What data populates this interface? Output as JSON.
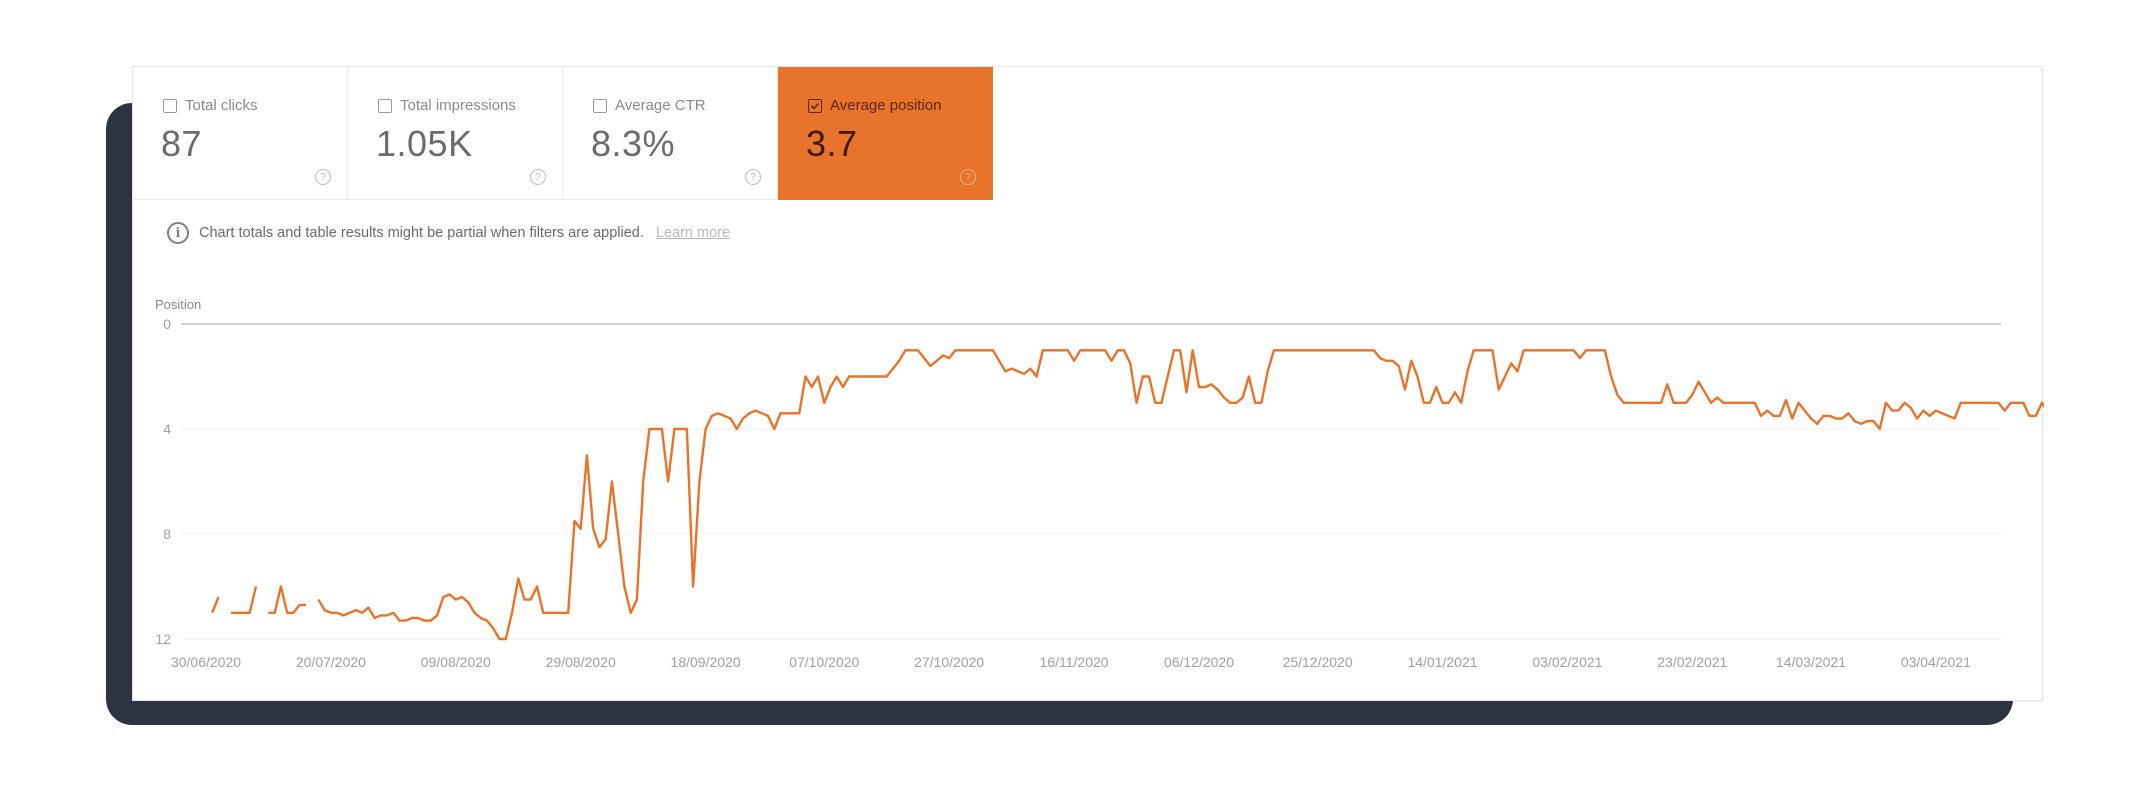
{
  "metrics": [
    {
      "label": "Total clicks",
      "value": "87",
      "checked": false
    },
    {
      "label": "Total impressions",
      "value": "1.05K",
      "checked": false
    },
    {
      "label": "Average CTR",
      "value": "8.3%",
      "checked": false
    },
    {
      "label": "Average position",
      "value": "3.7",
      "checked": true
    }
  ],
  "help_glyph": "?",
  "notice": {
    "icon": "info-icon",
    "text": "Chart totals and table results might be partial when filters are applied.",
    "link": "Learn more"
  },
  "colors": {
    "accent": "#e8732a",
    "line": "#e8732a",
    "frame": "#2d3441"
  },
  "chart_data": {
    "type": "line",
    "title": "Average position",
    "ylabel": "Position",
    "xlabel": "",
    "y_inverted": true,
    "ylim": [
      0,
      12
    ],
    "yticks": [
      0,
      4,
      8,
      12
    ],
    "grid": true,
    "legend": "none",
    "x_tick_labels": [
      "30/06/2020",
      "20/07/2020",
      "09/08/2020",
      "29/08/2020",
      "18/09/2020",
      "07/10/2020",
      "27/10/2020",
      "16/11/2020",
      "06/12/2020",
      "25/12/2020",
      "14/01/2021",
      "03/02/2021",
      "23/02/2021",
      "14/03/2021",
      "03/04/2021"
    ],
    "x_tick_day_index": [
      0,
      20,
      40,
      60,
      80,
      99,
      119,
      139,
      159,
      178,
      198,
      218,
      238,
      257,
      277
    ],
    "series": [
      {
        "name": "Average position",
        "points": [
          [
            1,
            11
          ],
          [
            2,
            10.4
          ],
          null,
          [
            4,
            11
          ],
          [
            6,
            11
          ],
          [
            7,
            11
          ],
          [
            8,
            10
          ],
          null,
          [
            10,
            11
          ],
          [
            11,
            11
          ],
          [
            12,
            10
          ],
          [
            13,
            11
          ],
          [
            14,
            11
          ],
          [
            15,
            10.7
          ],
          [
            16,
            10.7
          ],
          null,
          [
            18,
            10.5
          ],
          [
            19,
            10.9
          ],
          [
            20,
            11
          ],
          [
            21,
            11
          ],
          [
            22,
            11.1
          ],
          [
            23,
            11
          ],
          [
            24,
            10.9
          ],
          [
            25,
            11
          ],
          [
            26,
            10.8
          ],
          [
            27,
            11.2
          ],
          [
            28,
            11.1
          ],
          [
            29,
            11.1
          ],
          [
            30,
            11
          ],
          [
            31,
            11.3
          ],
          [
            32,
            11.3
          ],
          [
            33,
            11.2
          ],
          [
            34,
            11.2
          ],
          [
            35,
            11.3
          ],
          [
            36,
            11.3
          ],
          [
            37,
            11.1
          ],
          [
            38,
            10.4
          ],
          [
            39,
            10.3
          ],
          [
            40,
            10.5
          ],
          [
            41,
            10.4
          ],
          [
            42,
            10.6
          ],
          [
            43,
            11
          ],
          [
            44,
            11.2
          ],
          [
            45,
            11.3
          ],
          [
            46,
            11.6
          ],
          [
            47,
            12
          ],
          [
            48,
            12
          ],
          [
            49,
            11
          ],
          [
            50,
            9.7
          ],
          [
            51,
            10.5
          ],
          [
            52,
            10.5
          ],
          [
            53,
            10
          ],
          [
            54,
            11
          ],
          [
            55,
            11
          ],
          [
            56,
            11
          ],
          [
            57,
            11
          ],
          [
            58,
            11
          ],
          [
            59,
            7.5
          ],
          [
            60,
            7.8
          ],
          [
            61,
            5
          ],
          [
            62,
            7.8
          ],
          [
            63,
            8.5
          ],
          [
            64,
            8.2
          ],
          [
            65,
            6
          ],
          [
            66,
            8
          ],
          [
            67,
            10
          ],
          [
            68,
            11
          ],
          [
            69,
            10.5
          ],
          [
            70,
            6
          ],
          [
            71,
            4
          ],
          [
            72,
            4
          ],
          [
            73,
            4
          ],
          [
            74,
            6
          ],
          [
            75,
            4
          ],
          [
            76,
            4
          ],
          [
            77,
            4
          ],
          [
            78,
            10
          ],
          [
            79,
            6
          ],
          [
            80,
            4
          ],
          [
            81,
            3.5
          ],
          [
            82,
            3.4
          ],
          [
            83,
            3.5
          ],
          [
            84,
            3.6
          ],
          [
            85,
            4
          ],
          [
            86,
            3.6
          ],
          [
            87,
            3.4
          ],
          [
            88,
            3.3
          ],
          [
            89,
            3.4
          ],
          [
            90,
            3.5
          ],
          [
            91,
            4
          ],
          [
            92,
            3.4
          ],
          [
            93,
            3.4
          ],
          [
            94,
            3.4
          ],
          [
            95,
            3.4
          ],
          [
            96,
            2
          ],
          [
            97,
            2.4
          ],
          [
            98,
            2
          ],
          [
            99,
            3
          ],
          [
            100,
            2.4
          ],
          [
            101,
            2
          ],
          [
            102,
            2.4
          ],
          [
            103,
            2
          ],
          [
            104,
            2
          ],
          [
            105,
            2
          ],
          [
            106,
            2
          ],
          [
            107,
            2
          ],
          [
            108,
            2
          ],
          [
            109,
            2
          ],
          [
            110,
            1.7
          ],
          [
            111,
            1.4
          ],
          [
            112,
            1
          ],
          [
            113,
            1
          ],
          [
            114,
            1
          ],
          [
            115,
            1.3
          ],
          [
            116,
            1.6
          ],
          [
            117,
            1.4
          ],
          [
            118,
            1.2
          ],
          [
            119,
            1.3
          ],
          [
            120,
            1
          ],
          [
            121,
            1
          ],
          [
            122,
            1
          ],
          [
            123,
            1
          ],
          [
            124,
            1
          ],
          [
            125,
            1
          ],
          [
            126,
            1
          ],
          [
            127,
            1.4
          ],
          [
            128,
            1.8
          ],
          [
            129,
            1.7
          ],
          [
            130,
            1.8
          ],
          [
            131,
            1.9
          ],
          [
            132,
            1.7
          ],
          [
            133,
            2
          ],
          [
            134,
            1
          ],
          [
            135,
            1
          ],
          [
            136,
            1
          ],
          [
            137,
            1
          ],
          [
            138,
            1
          ],
          [
            139,
            1.4
          ],
          [
            140,
            1
          ],
          [
            141,
            1
          ],
          [
            142,
            1
          ],
          [
            143,
            1
          ],
          [
            144,
            1
          ],
          [
            145,
            1.4
          ],
          [
            146,
            1
          ],
          [
            147,
            1
          ],
          [
            148,
            1.5
          ],
          [
            149,
            3
          ],
          [
            150,
            2
          ],
          [
            151,
            2
          ],
          [
            152,
            3
          ],
          [
            153,
            3
          ],
          [
            154,
            2
          ],
          [
            155,
            1
          ],
          [
            156,
            1
          ],
          [
            157,
            2.6
          ],
          [
            158,
            1
          ],
          [
            159,
            2.4
          ],
          [
            160,
            2.4
          ],
          [
            161,
            2.3
          ],
          [
            162,
            2.5
          ],
          [
            163,
            2.8
          ],
          [
            164,
            3
          ],
          [
            165,
            3
          ],
          [
            166,
            2.8
          ],
          [
            167,
            2
          ],
          [
            168,
            3
          ],
          [
            169,
            3
          ],
          [
            170,
            1.8
          ],
          [
            171,
            1
          ],
          [
            172,
            1
          ],
          [
            173,
            1
          ],
          [
            174,
            1
          ],
          [
            175,
            1
          ],
          [
            176,
            1
          ],
          [
            177,
            1
          ],
          [
            178,
            1
          ],
          [
            179,
            1
          ],
          [
            180,
            1
          ],
          [
            181,
            1
          ],
          [
            182,
            1
          ],
          [
            183,
            1
          ],
          [
            184,
            1
          ],
          [
            185,
            1
          ],
          [
            186,
            1
          ],
          [
            187,
            1
          ],
          [
            188,
            1.3
          ],
          [
            189,
            1.4
          ],
          [
            190,
            1.4
          ],
          [
            191,
            1.6
          ],
          [
            192,
            2.5
          ],
          [
            193,
            1.4
          ],
          [
            194,
            2
          ],
          [
            195,
            3
          ],
          [
            196,
            3
          ],
          [
            197,
            2.4
          ],
          [
            198,
            3
          ],
          [
            199,
            3
          ],
          [
            200,
            2.6
          ],
          [
            201,
            3
          ],
          [
            202,
            1.8
          ],
          [
            203,
            1
          ],
          [
            204,
            1
          ],
          [
            205,
            1
          ],
          [
            206,
            1
          ],
          [
            207,
            2.5
          ],
          [
            208,
            2
          ],
          [
            209,
            1.5
          ],
          [
            210,
            1.8
          ],
          [
            211,
            1
          ],
          [
            212,
            1
          ],
          [
            213,
            1
          ],
          [
            214,
            1
          ],
          [
            215,
            1
          ],
          [
            216,
            1
          ],
          [
            217,
            1
          ],
          [
            218,
            1
          ],
          [
            219,
            1
          ],
          [
            220,
            1.3
          ],
          [
            221,
            1
          ],
          [
            222,
            1
          ],
          [
            223,
            1
          ],
          [
            224,
            1
          ],
          [
            225,
            2
          ],
          [
            226,
            2.7
          ],
          [
            227,
            3
          ],
          [
            228,
            3
          ],
          [
            229,
            3
          ],
          [
            230,
            3
          ],
          [
            231,
            3
          ],
          [
            232,
            3
          ],
          [
            233,
            3
          ],
          [
            234,
            2.3
          ],
          [
            235,
            3
          ],
          [
            236,
            3
          ],
          [
            237,
            3
          ],
          [
            238,
            2.7
          ],
          [
            239,
            2.2
          ],
          [
            240,
            2.6
          ],
          [
            241,
            3
          ],
          [
            242,
            2.8
          ],
          [
            243,
            3
          ],
          [
            244,
            3
          ],
          [
            245,
            3
          ],
          [
            246,
            3
          ],
          [
            247,
            3
          ],
          [
            248,
            3
          ],
          [
            249,
            3.5
          ],
          [
            250,
            3.3
          ],
          [
            251,
            3.5
          ],
          [
            252,
            3.5
          ],
          [
            253,
            2.9
          ],
          [
            254,
            3.6
          ],
          [
            255,
            3
          ],
          [
            256,
            3.3
          ],
          [
            257,
            3.6
          ],
          [
            258,
            3.8
          ],
          [
            259,
            3.5
          ],
          [
            260,
            3.5
          ],
          [
            261,
            3.6
          ],
          [
            262,
            3.6
          ],
          [
            263,
            3.4
          ],
          [
            264,
            3.7
          ],
          [
            265,
            3.8
          ],
          [
            266,
            3.7
          ],
          [
            267,
            3.7
          ],
          [
            268,
            4
          ],
          [
            269,
            3
          ],
          [
            270,
            3.3
          ],
          [
            271,
            3.3
          ],
          [
            272,
            3
          ],
          [
            273,
            3.2
          ],
          [
            274,
            3.6
          ],
          [
            275,
            3.3
          ],
          [
            276,
            3.5
          ],
          [
            277,
            3.3
          ],
          [
            278,
            3.4
          ],
          [
            279,
            3.5
          ],
          [
            280,
            3.6
          ],
          [
            281,
            3
          ],
          [
            282,
            3
          ],
          [
            283,
            3
          ],
          [
            284,
            3
          ],
          [
            285,
            3
          ],
          [
            286,
            3
          ],
          [
            287,
            3
          ],
          [
            288,
            3.3
          ],
          [
            289,
            3
          ],
          [
            290,
            3
          ],
          [
            291,
            3
          ],
          [
            292,
            3.5
          ],
          [
            293,
            3.5
          ],
          [
            294,
            3
          ],
          [
            295,
            3.4
          ],
          [
            296,
            3.5
          ],
          [
            297,
            3.7
          ],
          [
            298,
            3.3
          ],
          [
            299,
            3
          ],
          [
            300,
            3
          ],
          [
            301,
            3.2
          ],
          [
            302,
            3
          ]
        ]
      }
    ]
  }
}
